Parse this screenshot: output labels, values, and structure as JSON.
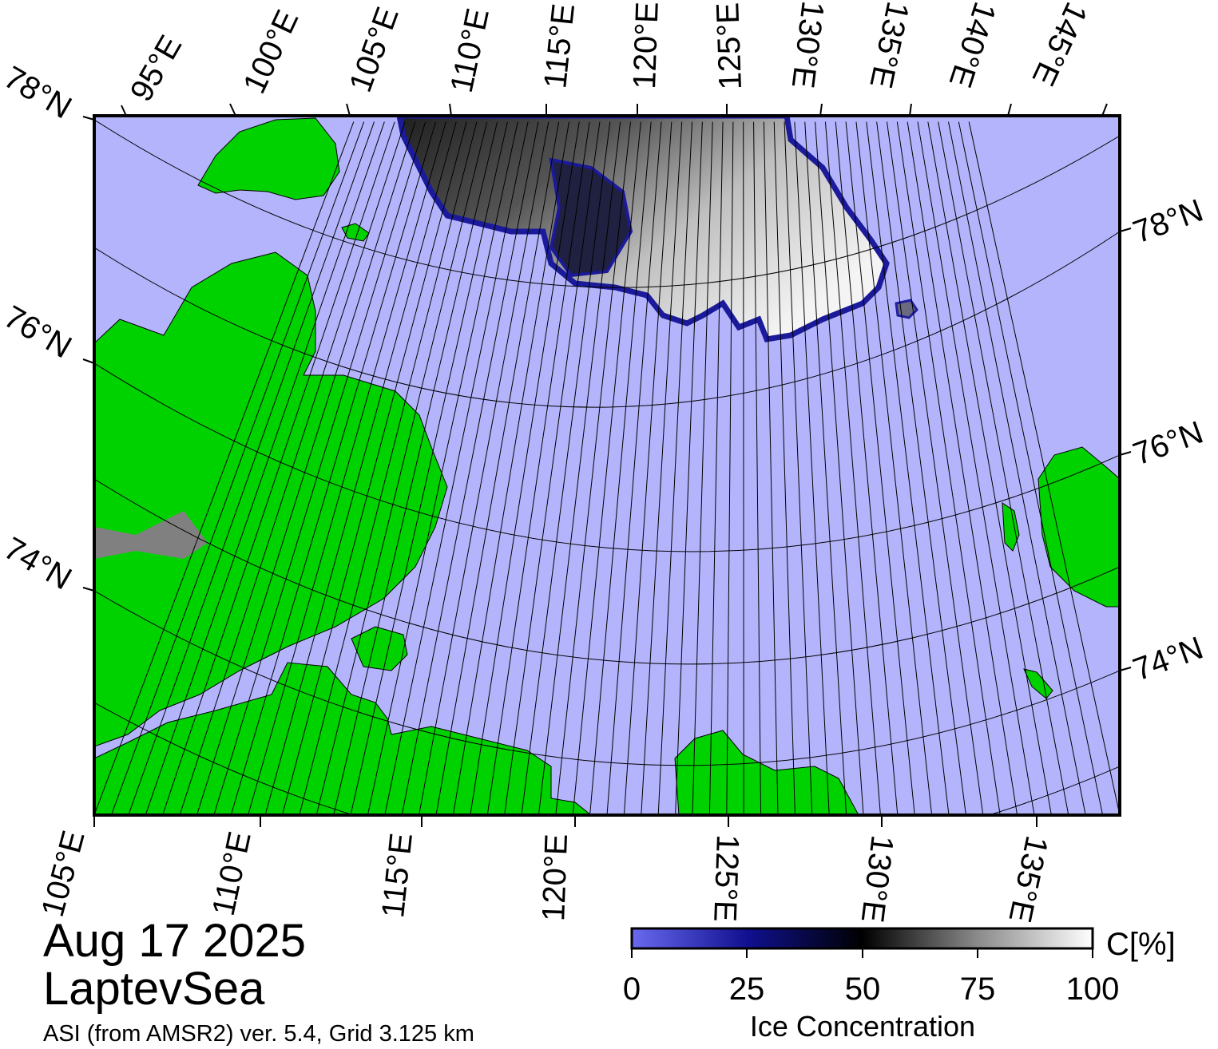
{
  "map": {
    "date": "Aug 17 2025",
    "region": "LaptevSea",
    "product_line": "ASI (from AMSR2) ver. 5.4,  Grid 3.125 km"
  },
  "graticule": {
    "top_lon_labels": [
      "95°E",
      "100°E",
      "105°E",
      "110°E",
      "115°E",
      "120°E",
      "125°E",
      "130°E",
      "135°E",
      "140°E",
      "145°E"
    ],
    "bottom_lon_labels": [
      "105°E",
      "110°E",
      "115°E",
      "120°E",
      "125°E",
      "130°E",
      "135°E"
    ],
    "left_lat_labels": [
      "78°N",
      "76°N",
      "74°N"
    ],
    "right_lat_labels": [
      "78°N",
      "76°N",
      "74°N"
    ]
  },
  "colorbar": {
    "title": "Ice Concentration",
    "unit": "C[%]",
    "ticks": [
      "0",
      "25",
      "50",
      "75",
      "100"
    ],
    "colors": [
      "#6a6af0",
      "#050560",
      "#000000",
      "#8a8a8a",
      "#ffffff"
    ]
  },
  "colors": {
    "ocean": "#b4b4fc",
    "land": "#00d200",
    "coast_shadow": "#808080",
    "ice_edge": "#2020a0"
  }
}
